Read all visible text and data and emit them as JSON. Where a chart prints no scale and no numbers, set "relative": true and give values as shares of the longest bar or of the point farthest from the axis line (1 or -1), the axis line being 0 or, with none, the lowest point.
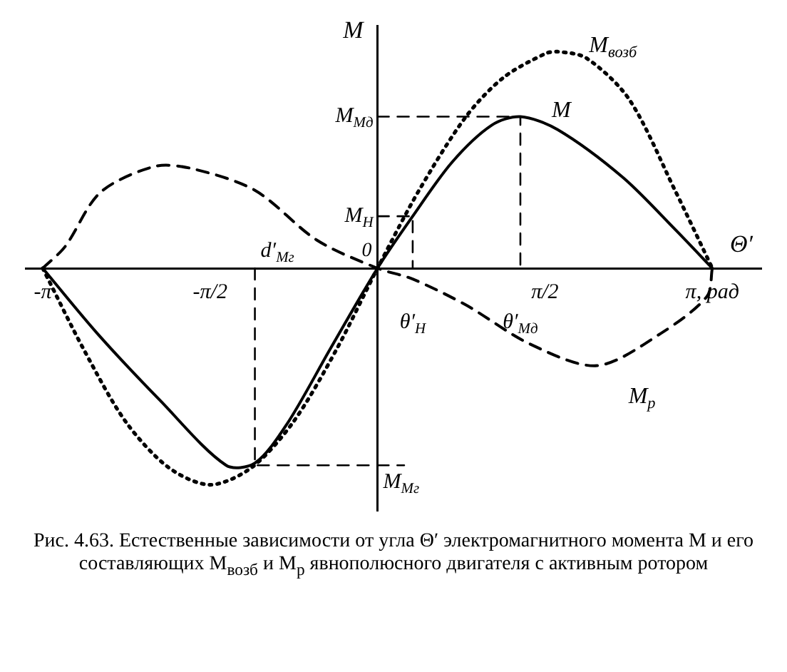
{
  "chart_data": {
    "type": "line",
    "relative": true,
    "xlabel": "Θ′",
    "ylabel": "M",
    "legend": false,
    "grid": false,
    "marker": "none",
    "xlim": [
      -3.3,
      3.6
    ],
    "xticks": [
      {
        "value": -3.14,
        "label": "-π"
      },
      {
        "value": -1.57,
        "label": "-π/2"
      },
      {
        "value": 1.57,
        "label": "π/2"
      },
      {
        "value": 3.14,
        "label": "π, рад"
      }
    ],
    "series": [
      {
        "name": "M$_{возб}$",
        "color": "#000000",
        "line_style": "dotted",
        "x": [
          -3.14,
          -2.75,
          -2.36,
          -1.96,
          -1.57,
          -1.18,
          -0.79,
          -0.39,
          0,
          0.39,
          0.83,
          1.18,
          1.57,
          1.69,
          1.96,
          2.36,
          2.79,
          3.14
        ],
        "values": [
          0,
          -0.38,
          -0.71,
          -0.92,
          -1,
          -0.92,
          -0.71,
          -0.38,
          0,
          0.36,
          0.7,
          0.88,
          0.99,
          1,
          0.97,
          0.78,
          0.36,
          0
        ]
      },
      {
        "name": "M",
        "color": "#000000",
        "line_style": "solid",
        "x": [
          -3.14,
          -2.63,
          -2.04,
          -1.42,
          -1.15,
          -0.85,
          -0.44,
          0,
          0.33,
          0.7,
          1.07,
          1.34,
          1.69,
          2.3,
          2.79,
          3.14
        ],
        "values": [
          0,
          -0.3,
          -0.61,
          -0.91,
          -0.9,
          -0.72,
          -0.37,
          0,
          0.24,
          0.49,
          0.66,
          0.7,
          0.64,
          0.42,
          0.18,
          0
        ]
      },
      {
        "name": "M$_{р}$",
        "color": "#000000",
        "line_style": "dashed",
        "x": [
          -3.14,
          -2.93,
          -2.6,
          -2.09,
          -1.74,
          -1.15,
          -0.57,
          0,
          0.33,
          0.83,
          1.43,
          2.06,
          2.66,
          3.09,
          3.14
        ],
        "values": [
          0,
          0.1,
          0.35,
          0.47,
          0.46,
          0.36,
          0.13,
          0,
          -0.05,
          -0.17,
          -0.35,
          -0.45,
          -0.3,
          -0.13,
          0
        ]
      },
      {
        "color": "#000000",
        "line_style": "dashed",
        "x": [
          0,
          1.34,
          1.34
        ],
        "values": [
          0.7,
          0.7,
          0
        ]
      },
      {
        "color": "#000000",
        "line_style": "dashed",
        "x": [
          -1.15,
          -1.15,
          0.25
        ],
        "values": [
          0,
          -0.91,
          -0.91
        ]
      },
      {
        "color": "#000000",
        "line_style": "dashed",
        "x": [
          0,
          0.33,
          0.33
        ],
        "values": [
          0.24,
          0.24,
          0
        ]
      }
    ],
    "annotations": [
      {
        "text": "M$_{Мд}$",
        "x": 0,
        "y": 0.7
      },
      {
        "text": "M$_{Н}$",
        "x": 0,
        "y": 0.24
      },
      {
        "text": "M$_{Мг}$",
        "x": 0,
        "y": -0.91
      },
      {
        "text": "0",
        "x": 0,
        "y": 0
      },
      {
        "text": "θ′$_{Н}$",
        "x": 0.33,
        "y": 0
      },
      {
        "text": "θ′$_{Мд}$",
        "x": 1.34,
        "y": 0
      },
      {
        "text": "d′$_{Мг}$",
        "x": -1.15,
        "y": 0
      },
      "Рис. 4.63. Естественные зависимости от угла Θ′ электромагнитного момента M и его составляющих M$_{возб}$ и M$_{р}$ явнополюсного двигателя с активным ротором"
    ]
  }
}
